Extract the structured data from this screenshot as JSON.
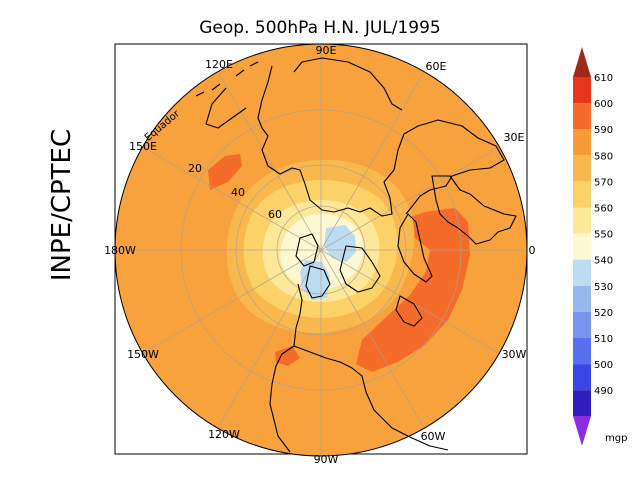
{
  "title": "Geop. 500hPa H.N. JUL/1995",
  "source_label": "INPE/CPTEC",
  "map": {
    "projection": "polar stereographic (north pole)",
    "equator_label": "Equador",
    "longitude_labels": [
      "90E",
      "60E",
      "30E",
      "0",
      "30W",
      "60W",
      "90W",
      "120W",
      "150W",
      "180W",
      "150E",
      "120E"
    ],
    "latitude_labels": [
      "20",
      "40",
      "60"
    ]
  },
  "colorbar": {
    "unit": "mgp",
    "levels": [
      "610",
      "600",
      "590",
      "580",
      "570",
      "560",
      "550",
      "540",
      "530",
      "520",
      "510",
      "500",
      "490"
    ],
    "colors": [
      "#e8361b",
      "#f46b2a",
      "#f79b36",
      "#f9b84d",
      "#fbd168",
      "#fde89a",
      "#fdf7d2",
      "#bcdcf2",
      "#97b8ee",
      "#7895ee",
      "#5a6ff0",
      "#3a47e6",
      "#2f1ec0"
    ],
    "top_arrow_color": "#a0291a",
    "bottom_arrow_color": "#8c2ee0"
  }
}
